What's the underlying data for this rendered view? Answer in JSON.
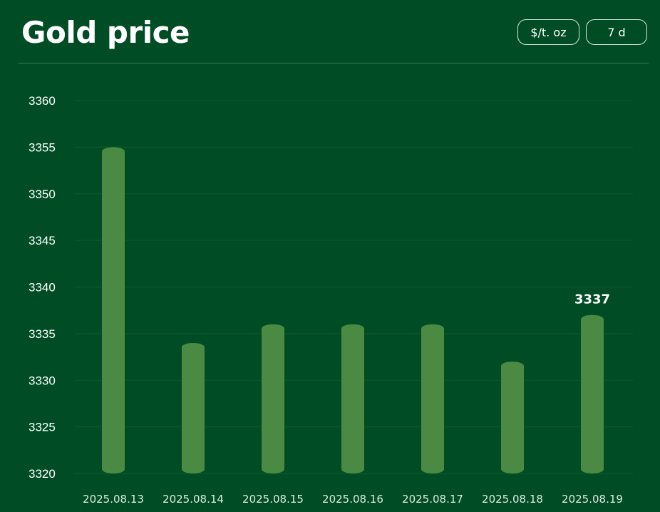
{
  "header": {
    "title": "Gold price",
    "unit_button": "$/t. oz",
    "range_button": "7 d"
  },
  "colors": {
    "background": "#004d25",
    "bar": "#4a8a42",
    "gridline": "#0d5a2c",
    "text": "#ffffff"
  },
  "chart_data": {
    "type": "bar",
    "title": "Gold price",
    "xlabel": "",
    "ylabel": "",
    "categories": [
      "2025.08.13",
      "2025.08.14",
      "2025.08.15",
      "2025.08.16",
      "2025.08.17",
      "2025.08.18",
      "2025.08.19"
    ],
    "values": [
      3355,
      3334,
      3336,
      3336,
      3336,
      3332,
      3337
    ],
    "ylim": [
      3320,
      3360
    ],
    "yticks": [
      3320,
      3325,
      3330,
      3335,
      3340,
      3345,
      3350,
      3355,
      3360
    ],
    "grid": true,
    "legend": "none",
    "annotations": [
      {
        "category": "2025.08.19",
        "text": "3337"
      }
    ]
  }
}
